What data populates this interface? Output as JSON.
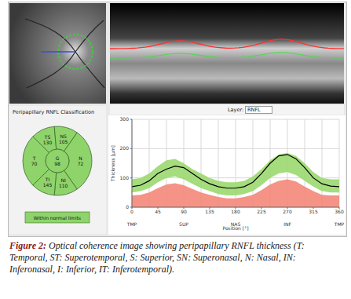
{
  "toolbar": {
    "layer_label": "Layer:",
    "layer": "RNFL"
  },
  "classification": {
    "title": "Peripapillary RNFL Classification",
    "sectors": [
      {
        "label": "T",
        "value": 70
      },
      {
        "label": "TS",
        "value": 130
      },
      {
        "label": "NS",
        "value": 105
      },
      {
        "label": "N",
        "value": 72
      },
      {
        "label": "NI",
        "value": 110
      },
      {
        "label": "TI",
        "value": 145
      }
    ],
    "global": {
      "label": "G",
      "value": 98
    },
    "status": "Within normal limits"
  },
  "chart_data": {
    "type": "line",
    "x_label": "Position [°]",
    "y_label": "Thickness [µm]",
    "x": [
      0,
      15,
      30,
      45,
      60,
      75,
      90,
      105,
      120,
      135,
      150,
      165,
      180,
      195,
      210,
      225,
      240,
      255,
      270,
      285,
      300,
      315,
      330,
      345,
      360
    ],
    "xlim": [
      0,
      360
    ],
    "xticks": [
      0,
      45,
      90,
      135,
      180,
      225,
      270,
      315,
      360
    ],
    "region_ticks": [
      {
        "value": 0,
        "label": "TMP"
      },
      {
        "value": 90,
        "label": "SUP"
      },
      {
        "value": 180,
        "label": "NAS"
      },
      {
        "value": 270,
        "label": "INF"
      },
      {
        "value": 360,
        "label": "TMP"
      }
    ],
    "ylim": [
      0,
      300
    ],
    "yticks": [
      0,
      100,
      200,
      300
    ],
    "grid": true,
    "series": [
      {
        "type": "area",
        "color": "#f4877a",
        "values": [
          40,
          42,
          50,
          65,
          78,
          82,
          75,
          62,
          50,
          42,
          35,
          30,
          30,
          35,
          42,
          58,
          78,
          90,
          95,
          88,
          70,
          55,
          42,
          40,
          40
        ]
      },
      {
        "type": "band",
        "color": "#9bd86f",
        "lower": [
          50,
          55,
          65,
          85,
          100,
          105,
          95,
          80,
          65,
          55,
          45,
          40,
          40,
          45,
          55,
          75,
          100,
          115,
          120,
          110,
          90,
          70,
          55,
          50,
          50
        ],
        "upper": [
          95,
          100,
          115,
          140,
          160,
          165,
          150,
          130,
          115,
          100,
          90,
          85,
          85,
          90,
          105,
          130,
          160,
          180,
          185,
          175,
          150,
          120,
          100,
          95,
          95
        ]
      },
      {
        "type": "line",
        "color": "#000000",
        "values": [
          70,
          75,
          90,
          115,
          130,
          140,
          135,
          115,
          95,
          80,
          70,
          65,
          65,
          70,
          85,
          115,
          150,
          175,
          180,
          165,
          135,
          100,
          80,
          72,
          70
        ]
      }
    ]
  },
  "caption": {
    "label": "Figure 2:",
    "text": "Optical coherence image showing peripapillary RNFL thickness (T: Temporal, ST: Superotemporal, S: Superior, SN: Superonasal, N: Nasal, IN: Inferonasal, I: Inferior, IT: Inferotemporal)."
  }
}
